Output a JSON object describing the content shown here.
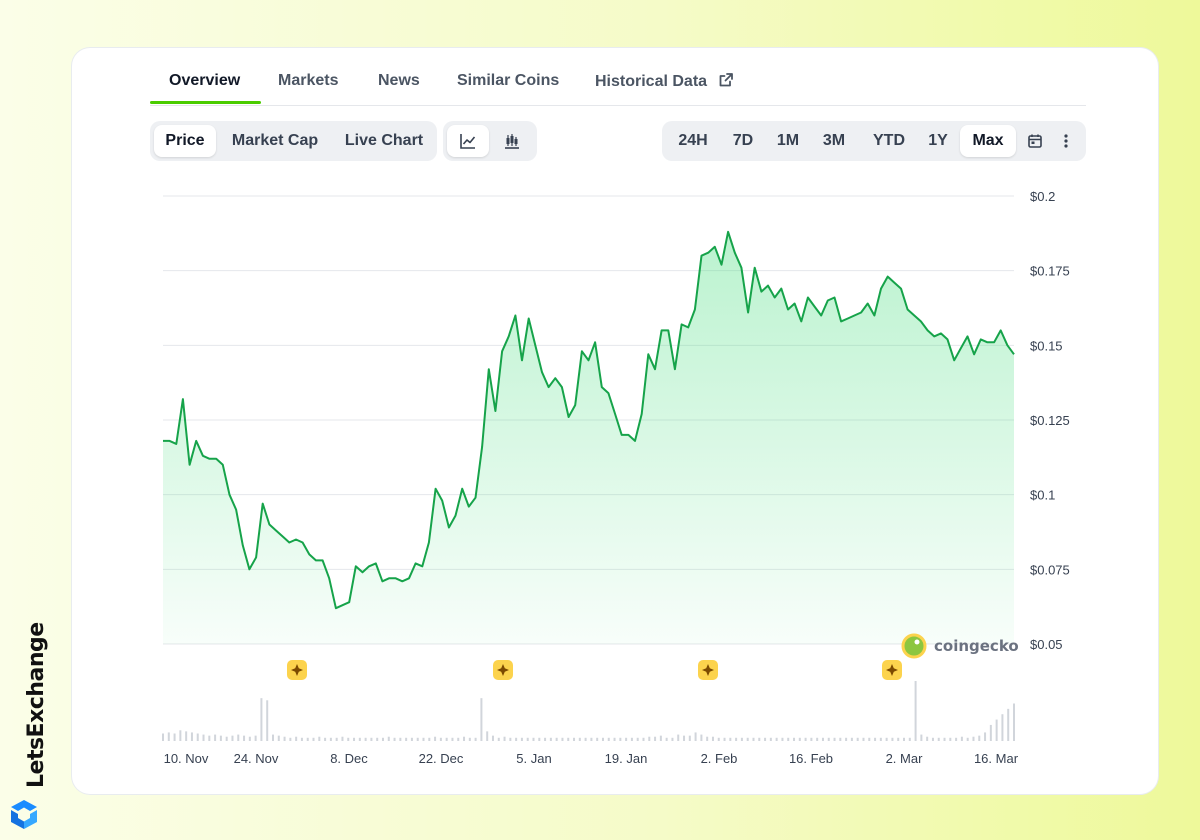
{
  "brand": {
    "name": "LetsExchange"
  },
  "tabs": [
    {
      "label": "Overview",
      "active": true
    },
    {
      "label": "Markets"
    },
    {
      "label": "News"
    },
    {
      "label": "Similar Coins"
    },
    {
      "label": "Historical Data"
    }
  ],
  "chart_type_toggle": [
    {
      "label": "Price",
      "active": true
    },
    {
      "label": "Market Cap"
    },
    {
      "label": "Live Chart"
    }
  ],
  "chart_style_icons": [
    "line-chart-icon",
    "candlestick-icon"
  ],
  "ranges": [
    {
      "label": "24H"
    },
    {
      "label": "7D"
    },
    {
      "label": "1M"
    },
    {
      "label": "3M"
    },
    {
      "label": "YTD"
    },
    {
      "label": "1Y"
    },
    {
      "label": "Max",
      "active": true
    }
  ],
  "toolbar_icons": [
    "calendar-icon",
    "more-vertical-icon"
  ],
  "watermark": "coingecko",
  "colors": {
    "line": "#16a34a",
    "fill": "#4ade80",
    "accent": "#4bcc00",
    "event": "#fcd34d"
  },
  "chart_data": {
    "type": "area",
    "title": "",
    "xlabel": "",
    "ylabel": "",
    "ylim": [
      0.05,
      0.2
    ],
    "grid": true,
    "y_ticks": [
      "$0.2",
      "$0.175",
      "$0.15",
      "$0.125",
      "$0.1",
      "$0.075",
      "$0.05"
    ],
    "x_ticks": [
      "10. Nov",
      "24. Nov",
      "8. Dec",
      "22. Dec",
      "5. Jan",
      "19. Jan",
      "2. Feb",
      "16. Feb",
      "2. Mar",
      "16. Mar"
    ],
    "x_start": "2024-11-10",
    "series": [
      {
        "values": [
          0.118,
          0.118,
          0.117,
          0.132,
          0.11,
          0.118,
          0.113,
          0.112,
          0.112,
          0.11,
          0.1,
          0.095,
          0.083,
          0.075,
          0.079,
          0.097,
          0.09,
          0.088,
          0.086,
          0.084,
          0.085,
          0.084,
          0.08,
          0.078,
          0.078,
          0.072,
          0.062,
          0.063,
          0.064,
          0.076,
          0.074,
          0.076,
          0.077,
          0.071,
          0.072,
          0.072,
          0.071,
          0.072,
          0.077,
          0.076,
          0.084,
          0.102,
          0.098,
          0.089,
          0.093,
          0.102,
          0.096,
          0.099,
          0.116,
          0.142,
          0.128,
          0.148,
          0.153,
          0.16,
          0.145,
          0.159,
          0.15,
          0.141,
          0.136,
          0.139,
          0.136,
          0.126,
          0.13,
          0.148,
          0.145,
          0.151,
          0.136,
          0.134,
          0.127,
          0.12,
          0.12,
          0.118,
          0.127,
          0.147,
          0.142,
          0.155,
          0.155,
          0.142,
          0.157,
          0.156,
          0.162,
          0.18,
          0.181,
          0.183,
          0.177,
          0.188,
          0.181,
          0.176,
          0.161,
          0.176,
          0.168,
          0.17,
          0.166,
          0.169,
          0.162,
          0.164,
          0.158,
          0.166,
          0.163,
          0.16,
          0.165,
          0.166,
          0.158,
          0.159,
          0.16,
          0.161,
          0.164,
          0.16,
          0.169,
          0.173,
          0.171,
          0.169,
          0.162,
          0.16,
          0.158,
          0.155,
          0.153,
          0.154,
          0.152,
          0.145,
          0.149,
          0.153,
          0.147,
          0.152,
          0.151,
          0.151,
          0.155,
          0.15,
          0.147
        ]
      }
    ],
    "volume": [
      7,
      8,
      7,
      10,
      9,
      8,
      7,
      6,
      5,
      6,
      5,
      4,
      5,
      6,
      5,
      4,
      5,
      40,
      38,
      6,
      5,
      4,
      3,
      4,
      3,
      3,
      3,
      4,
      3,
      3,
      3,
      4,
      3,
      3,
      3,
      3,
      3,
      3,
      3,
      4,
      3,
      3,
      3,
      3,
      3,
      3,
      3,
      4,
      3,
      3,
      3,
      3,
      4,
      3,
      3,
      40,
      9,
      5,
      3,
      4,
      3,
      3,
      3,
      3,
      3,
      3,
      3,
      3,
      3,
      3,
      3,
      3,
      3,
      3,
      3,
      3,
      3,
      3,
      3,
      3,
      3,
      3,
      3,
      3,
      4,
      4,
      5,
      3,
      3,
      6,
      5,
      5,
      8,
      6,
      4,
      4,
      3,
      3,
      3,
      3,
      3,
      3,
      3,
      3,
      3,
      3,
      3,
      3,
      3,
      3,
      3,
      3,
      3,
      3,
      3,
      3,
      3,
      3,
      3,
      3,
      3,
      3,
      3,
      3,
      3,
      3,
      3,
      3,
      3,
      3,
      56,
      6,
      4,
      3,
      3,
      3,
      3,
      3,
      4,
      3,
      4,
      5,
      8,
      15,
      20,
      25,
      30,
      35
    ],
    "events": [
      "event-marker",
      "event-marker",
      "event-marker",
      "event-marker"
    ]
  }
}
